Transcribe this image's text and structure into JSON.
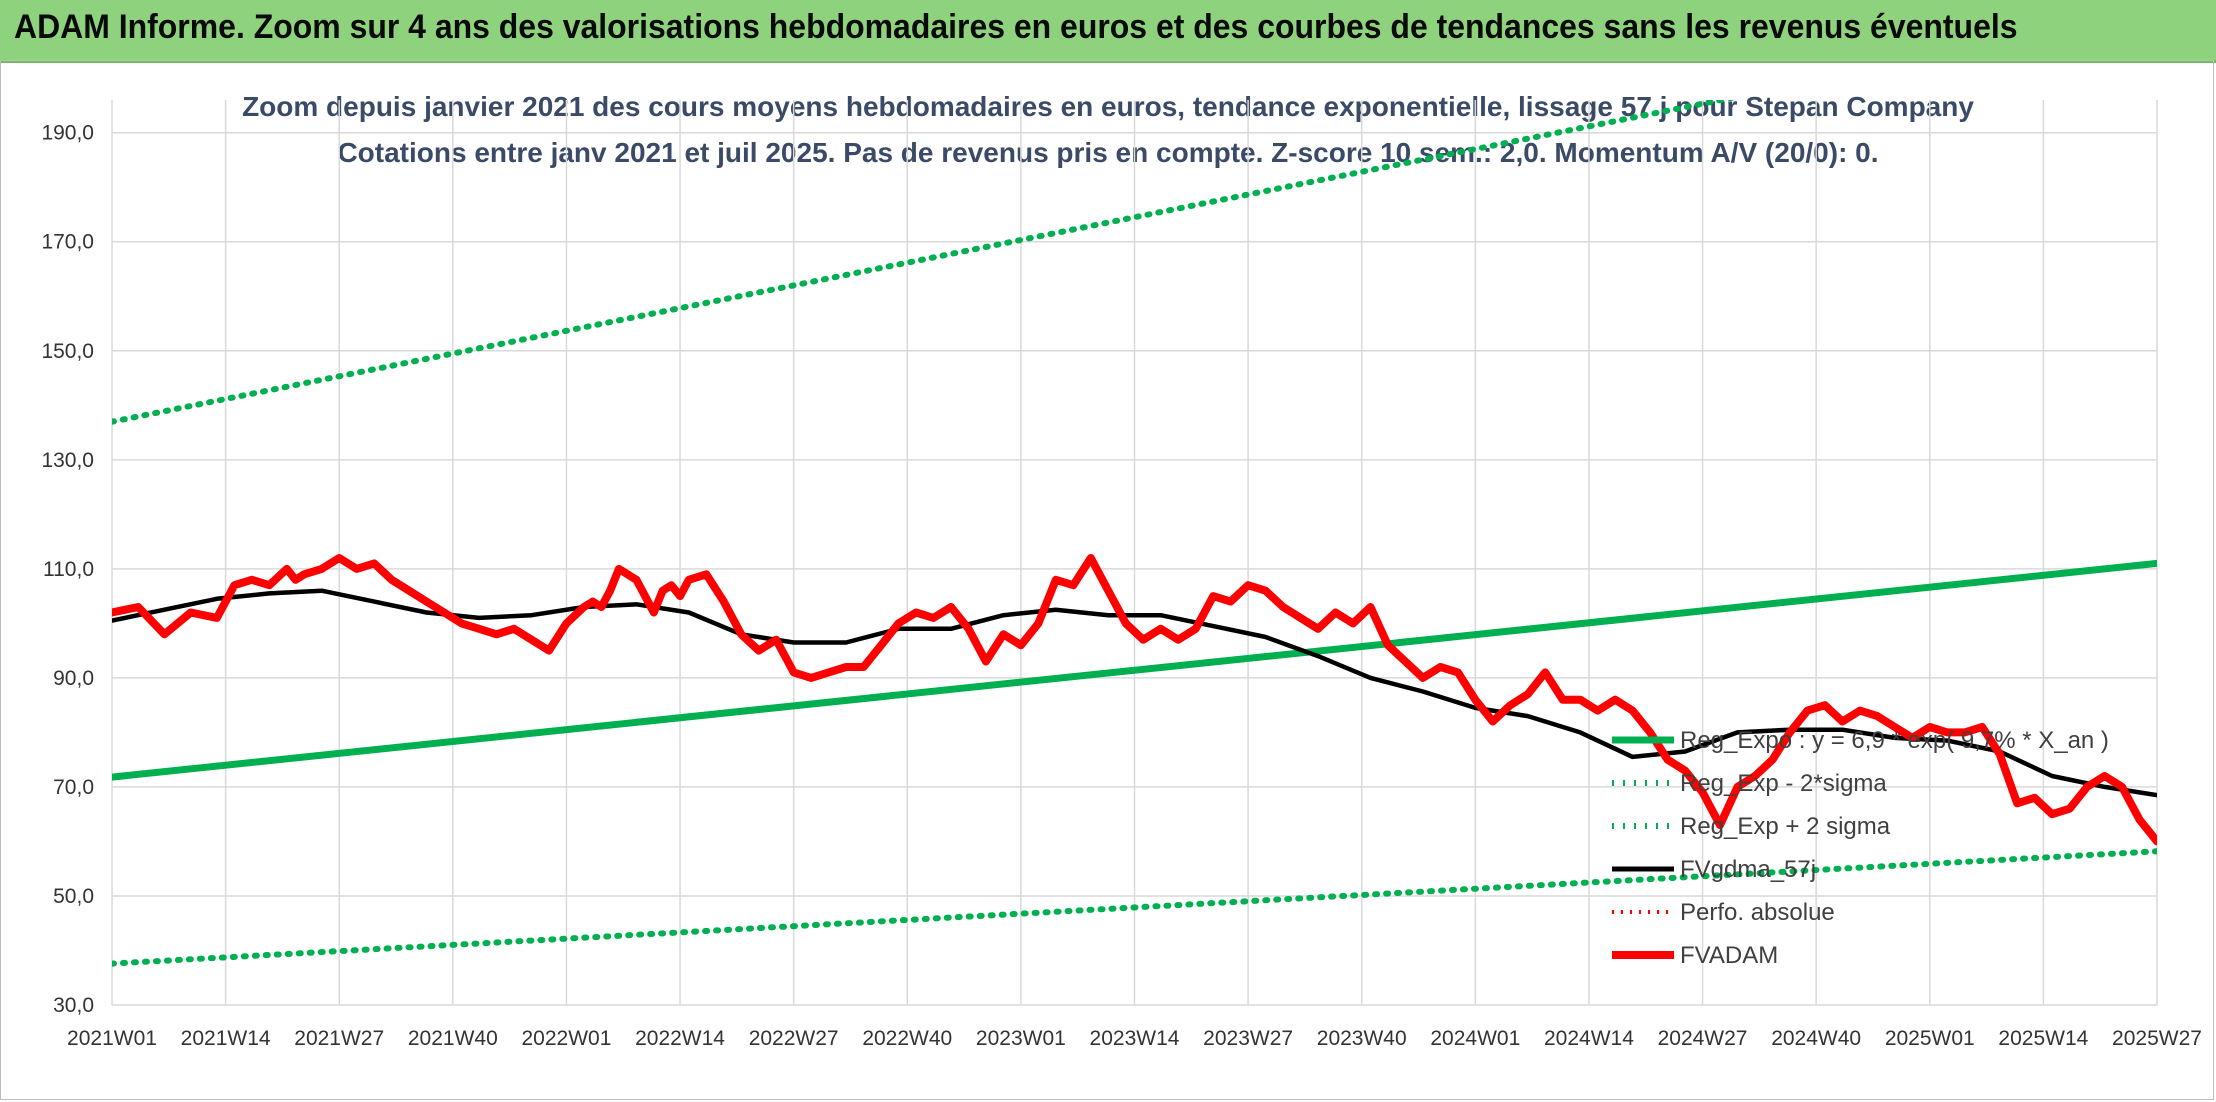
{
  "header": {
    "title": "ADAM Informe. Zoom sur 4 ans des valorisations hebdomadaires en euros et des courbes de tendances sans les revenus éventuels"
  },
  "colors": {
    "reg_expo": "#00b050",
    "perfo_absolue": "#ff0000",
    "fvadam": "#ff0000",
    "fvgdma": "#000000",
    "header_bg": "#8fd27e",
    "subtitle": "#3b4a66"
  },
  "chart_data": {
    "type": "line",
    "title_line1": "Zoom depuis janvier 2021 des cours moyens hebdomadaires en euros, tendance exponentielle, lissage 57 j pour Stepan Company",
    "title_line2": "Cotations entre janv 2021 et juil 2025. Pas de revenus pris en compte. Z-score 10 sem.: 2,0. Momentum A/V (20/0): 0.",
    "x_tick_labels": [
      "2021W01",
      "2021W14",
      "2021W27",
      "2021W40",
      "2022W01",
      "2022W14",
      "2022W27",
      "2022W40",
      "2023W01",
      "2023W14",
      "2023W27",
      "2023W40",
      "2024W01",
      "2024W14",
      "2024W27",
      "2024W40",
      "2025W01",
      "2025W14",
      "2025W27"
    ],
    "y_tick_labels": [
      "30,0",
      "50,0",
      "70,0",
      "90,0",
      "110,0",
      "130,0",
      "150,0",
      "170,0",
      "190,0"
    ],
    "ylim": [
      30,
      196
    ],
    "grid": true,
    "legend_position": "right-bottom",
    "legend": [
      {
        "label": "Reg_Expo : y = 6,9 * exp( 9,7% *  X_an )",
        "style": "solid",
        "color": "#00b050"
      },
      {
        "label": "Reg_Exp - 2*sigma",
        "style": "dotted",
        "color": "#00b050"
      },
      {
        "label": "Reg_Exp + 2 sigma",
        "style": "dotted",
        "color": "#00b050"
      },
      {
        "label": "FVgdma_57j",
        "style": "solid",
        "color": "#000000"
      },
      {
        "label": "Perfo. absolue",
        "style": "dotted",
        "color": "#ff0000"
      },
      {
        "label": "FVADAM",
        "style": "solid-thick",
        "color": "#ff0000"
      }
    ],
    "series": [
      {
        "name": "Reg_Expo : y = 6,9 * exp( 9,7% *  X_an )",
        "x": [
          0,
          234
        ],
        "values": [
          71.8,
          111.0
        ]
      },
      {
        "name": "Reg_Exp - 2*sigma",
        "x": [
          0,
          234
        ],
        "values": [
          37.6,
          58.2
        ]
      },
      {
        "name": "Reg_Exp + 2 sigma",
        "x": [
          0,
          234
        ],
        "values": [
          137.0,
          212.0
        ]
      },
      {
        "name": "FVgdma_57j",
        "x": [
          0,
          6,
          12,
          18,
          24,
          30,
          36,
          42,
          48,
          54,
          60,
          66,
          72,
          78,
          84,
          90,
          96,
          102,
          108,
          114,
          120,
          126,
          132,
          138,
          144,
          150,
          156,
          162,
          168,
          174,
          180,
          186,
          192,
          198,
          204,
          210,
          216,
          222,
          228,
          234
        ],
        "values": [
          100.5,
          102.5,
          104.5,
          105.5,
          106.0,
          104.0,
          102.0,
          101.0,
          101.5,
          103.0,
          103.5,
          102.0,
          98.0,
          96.5,
          96.5,
          99.0,
          99.0,
          101.5,
          102.5,
          101.5,
          101.5,
          99.5,
          97.5,
          94.0,
          90.0,
          87.5,
          84.5,
          83.0,
          80.0,
          75.5,
          76.5,
          80.0,
          80.5,
          80.5,
          79.0,
          78.5,
          76.5,
          72.0,
          70.0,
          68.5
        ]
      },
      {
        "name": "FVADAM",
        "x": [
          0,
          3,
          6,
          9,
          12,
          14,
          16,
          18,
          20,
          21,
          22,
          24,
          26,
          28,
          30,
          32,
          34,
          36,
          38,
          40,
          42,
          44,
          46,
          48,
          50,
          52,
          54,
          55,
          56,
          57,
          58,
          60,
          62,
          63,
          64,
          65,
          66,
          68,
          70,
          72,
          74,
          76,
          78,
          80,
          82,
          84,
          86,
          88,
          90,
          92,
          94,
          96,
          98,
          100,
          102,
          104,
          106,
          108,
          110,
          112,
          114,
          116,
          118,
          120,
          122,
          124,
          126,
          128,
          130,
          132,
          134,
          136,
          138,
          140,
          142,
          144,
          146,
          148,
          150,
          152,
          154,
          156,
          158,
          160,
          162,
          164,
          166,
          168,
          170,
          172,
          174,
          176,
          178,
          180,
          182,
          184,
          186,
          188,
          190,
          192,
          194,
          196,
          198,
          200,
          202,
          204,
          206,
          208,
          210,
          212,
          214,
          216,
          218,
          220,
          222,
          224,
          226,
          228,
          230,
          232,
          234
        ],
        "values": [
          102,
          103,
          98,
          102,
          101,
          107,
          108,
          107,
          110,
          108,
          109,
          110,
          112,
          110,
          111,
          108,
          106,
          104,
          102,
          100,
          99,
          98,
          99,
          97,
          95,
          100,
          103,
          104,
          103,
          106,
          110,
          108,
          102,
          106,
          107,
          105,
          108,
          109,
          104,
          98,
          95,
          97,
          91,
          90,
          91,
          92,
          92,
          96,
          100,
          102,
          101,
          103,
          99,
          93,
          98,
          96,
          100,
          108,
          107,
          112,
          106,
          100,
          97,
          99,
          97,
          99,
          105,
          104,
          107,
          106,
          103,
          101,
          99,
          102,
          100,
          103,
          96,
          93,
          90,
          92,
          91,
          86,
          82,
          85,
          87,
          91,
          86,
          86,
          84,
          86,
          84,
          80,
          75,
          73,
          69,
          63,
          70,
          72,
          75,
          80,
          84,
          85,
          82,
          84,
          83,
          81,
          79,
          81,
          80,
          80,
          81,
          76,
          67,
          68,
          65,
          66,
          70,
          72,
          70,
          64,
          60
        ]
      }
    ]
  }
}
